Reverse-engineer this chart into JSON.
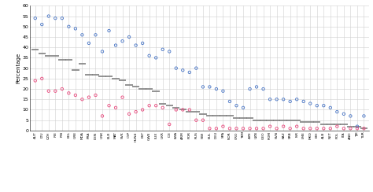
{
  "countries": [
    "AUT",
    "LTU",
    "CZH",
    "IRE",
    "FIN",
    "BEL",
    "GRE",
    "MDA",
    "FRA",
    "DEN",
    "UNK",
    "BLR",
    "MAT",
    "SVK",
    "CYP",
    "HUN4",
    "EST",
    "GWE",
    "LUX",
    "UKR",
    "ICE",
    "LWA",
    "ARM",
    "POR",
    "RUS",
    "SWI",
    "BUL",
    "DEU",
    "SPA",
    "NOR",
    "CRO",
    "TKM",
    "AZE",
    "UZB",
    "GEO",
    "ROM",
    "SVN",
    "KAZ",
    "SRB",
    "ISR",
    "LME",
    "MKD",
    "BIH",
    "ALB",
    "NET",
    "POL",
    "ITA",
    "AND",
    "TJK",
    "TUR"
  ],
  "male": [
    54,
    51,
    55,
    54,
    54,
    50,
    49,
    46,
    42,
    46,
    38,
    48,
    41,
    43,
    45,
    41,
    42,
    36,
    35,
    39,
    38,
    30,
    29,
    28,
    30,
    21,
    21,
    20,
    19,
    14,
    12,
    11,
    20,
    21,
    20,
    15,
    15,
    15,
    14,
    15,
    14,
    13,
    12,
    12,
    11,
    9,
    8,
    7,
    2,
    7
  ],
  "female": [
    24,
    25,
    19,
    19,
    20,
    18,
    17,
    15,
    16,
    17,
    7,
    12,
    11,
    16,
    8,
    9,
    10,
    12,
    12,
    11,
    3,
    10,
    10,
    10,
    5,
    5,
    1,
    1,
    2,
    1,
    1,
    1,
    1,
    1,
    1,
    2,
    1,
    2,
    1,
    2,
    1,
    1,
    1,
    1,
    1,
    2,
    1,
    1,
    1,
    1
  ],
  "both": [
    39,
    37,
    36,
    36,
    34,
    34,
    29,
    32,
    27,
    27,
    26,
    26,
    25,
    24,
    22,
    21,
    20,
    20,
    19,
    13,
    12,
    11,
    10,
    9,
    9,
    8,
    7,
    7,
    7,
    7,
    6,
    6,
    6,
    5,
    5,
    5,
    5,
    5,
    5,
    5,
    4,
    4,
    4,
    3,
    3,
    3,
    3,
    2,
    2,
    1
  ],
  "ylim": [
    0,
    60
  ],
  "yticks": [
    0,
    5,
    10,
    15,
    20,
    25,
    30,
    35,
    40,
    45,
    50,
    55,
    60
  ],
  "ylabel": "Percentage",
  "male_color": "#4472C4",
  "female_color": "#E8457A",
  "both_color": "#808080",
  "background": "#FFFFFF"
}
